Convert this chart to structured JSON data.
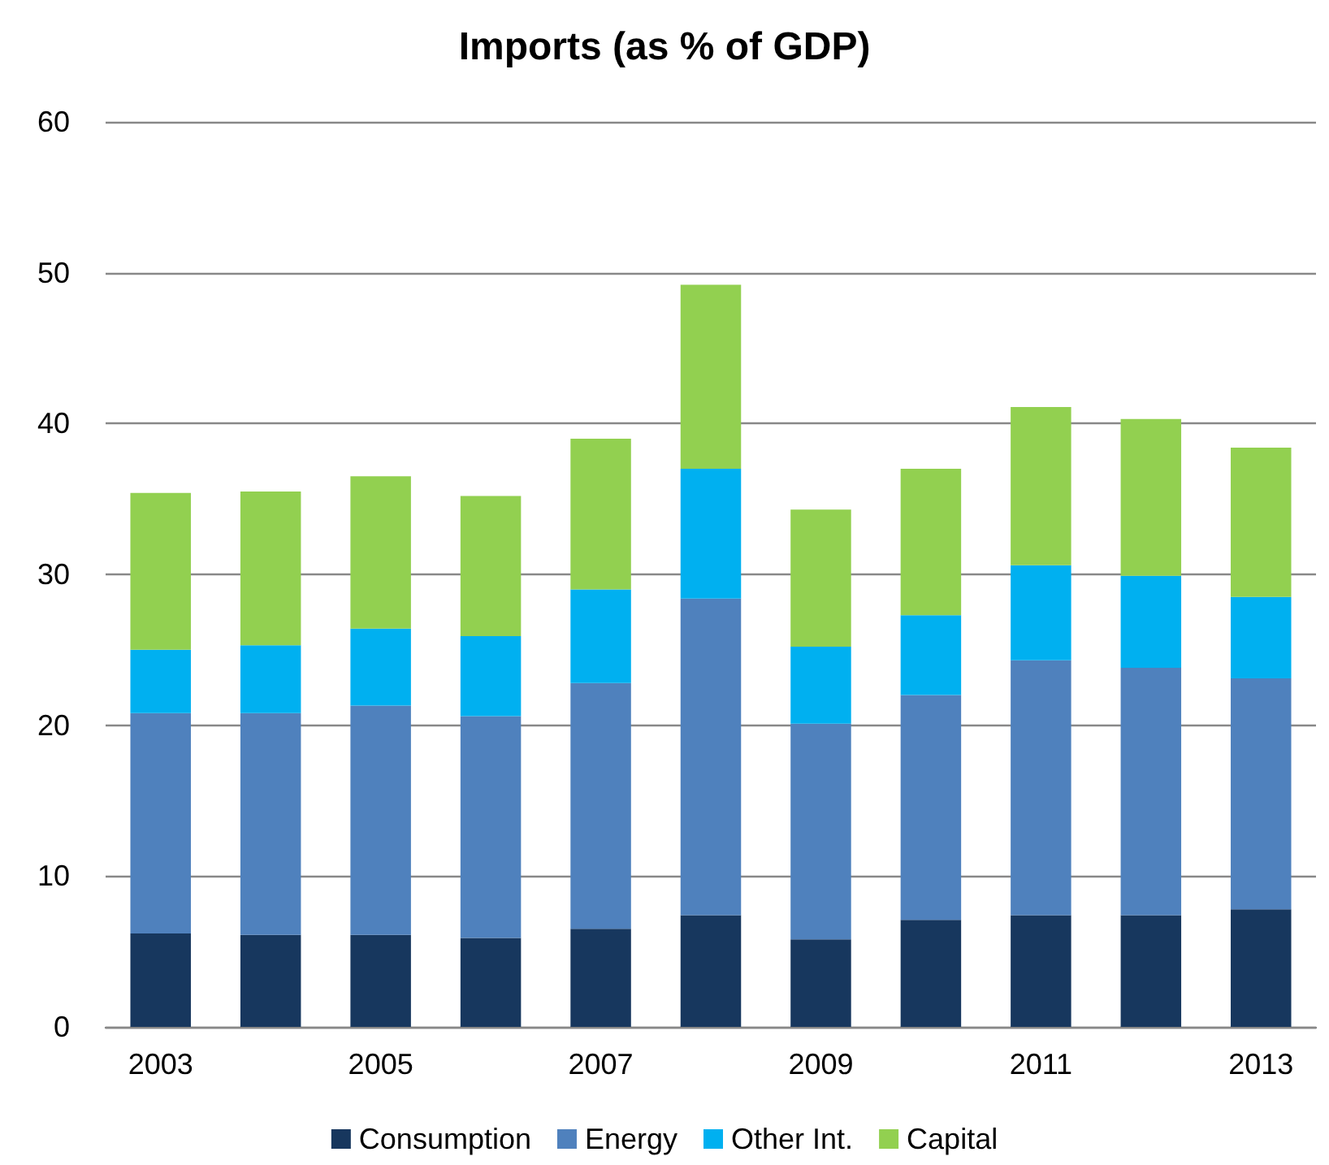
{
  "chart_data": {
    "type": "bar",
    "title": "Imports (as % of GDP)",
    "stacked": true,
    "categories": [
      "2003",
      null,
      "2005",
      null,
      "2007",
      null,
      "2009",
      null,
      "2011",
      null,
      "2013"
    ],
    "series": [
      {
        "name": "Consumption",
        "color": "#17375e",
        "values": [
          6.2,
          6.1,
          6.1,
          5.9,
          6.5,
          7.4,
          5.8,
          7.1,
          7.4,
          7.4,
          7.8
        ]
      },
      {
        "name": "Energy",
        "color": "#4f81bd",
        "values": [
          14.6,
          14.7,
          15.2,
          14.7,
          16.3,
          21.0,
          14.3,
          14.9,
          16.9,
          16.4,
          15.3
        ]
      },
      {
        "name": "Other Int.",
        "color": "#00b0f0",
        "values": [
          4.2,
          4.5,
          5.1,
          5.3,
          6.2,
          8.6,
          5.1,
          5.3,
          6.3,
          6.1,
          5.4
        ]
      },
      {
        "name": "Capital",
        "color": "#92d050",
        "values": [
          10.4,
          10.2,
          10.1,
          9.3,
          10.0,
          12.2,
          9.1,
          9.7,
          10.5,
          10.4,
          9.9
        ]
      }
    ],
    "ylim": [
      0,
      60
    ],
    "yticks": [
      0,
      10,
      20,
      30,
      40,
      50,
      60
    ],
    "grid": "y",
    "legend": "bottom"
  }
}
